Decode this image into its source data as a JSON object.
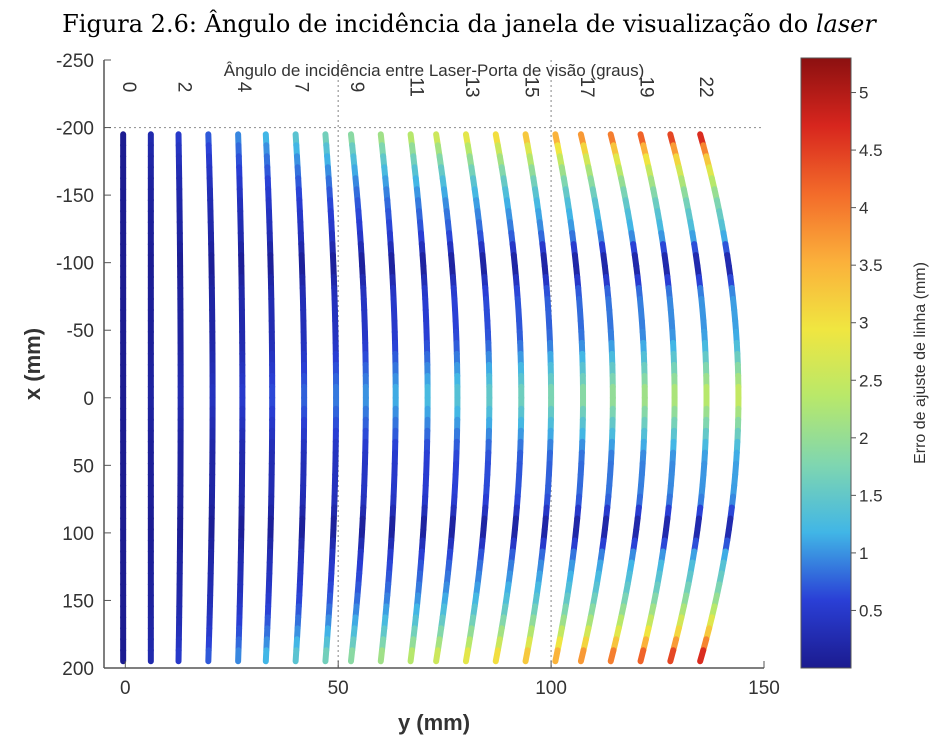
{
  "caption": {
    "prefix": "Figura 2.6: Ângulo de incidência da janela de visualização do ",
    "emphasis": "laser"
  },
  "chart_data": {
    "type": "line",
    "title": "Ângulo de incidência entre Laser-Porta de visão (graus)",
    "xlabel": "y (mm)",
    "ylabel": "x (mm)",
    "xlim": [
      -5,
      150
    ],
    "ylim": [
      -250,
      200
    ],
    "y_axis_inverted": true,
    "xticks": [
      0,
      50,
      100,
      150
    ],
    "yticks": [
      -250,
      -200,
      -150,
      -100,
      -50,
      0,
      50,
      100,
      150,
      200
    ],
    "grid": "dotted reference lines at y = 50, y = 100 and x = -200",
    "curve_labels": [
      "0",
      "2",
      "4",
      "7",
      "9",
      "11",
      "13",
      "15",
      "17",
      "19",
      "22"
    ],
    "series": [
      {
        "name": "0",
        "y_edge": -0.5,
        "y_center": -0.5
      },
      {
        "y_edge": 6.0,
        "y_center": 6.0
      },
      {
        "name": "2",
        "y_edge": 12.5,
        "y_center": 13.0
      },
      {
        "y_edge": 19.5,
        "y_center": 20.5
      },
      {
        "name": "4",
        "y_edge": 26.5,
        "y_center": 27.5
      },
      {
        "y_edge": 33.0,
        "y_center": 34.5
      },
      {
        "name": "7",
        "y_edge": 40.0,
        "y_center": 42.0
      },
      {
        "y_edge": 47.0,
        "y_center": 49.5
      },
      {
        "name": "9",
        "y_edge": 53.0,
        "y_center": 56.5
      },
      {
        "y_edge": 60.0,
        "y_center": 63.5
      },
      {
        "name": "11",
        "y_edge": 67.0,
        "y_center": 71.0
      },
      {
        "y_edge": 73.0,
        "y_center": 78.0
      },
      {
        "name": "13",
        "y_edge": 80.0,
        "y_center": 85.5
      },
      {
        "y_edge": 87.0,
        "y_center": 93.0
      },
      {
        "name": "15",
        "y_edge": 94.0,
        "y_center": 100.0
      },
      {
        "y_edge": 101.0,
        "y_center": 107.5
      },
      {
        "name": "17",
        "y_edge": 107.0,
        "y_center": 114.5
      },
      {
        "y_edge": 114.0,
        "y_center": 122.0
      },
      {
        "name": "19",
        "y_edge": 121.0,
        "y_center": 129.0
      },
      {
        "y_edge": 128.0,
        "y_center": 136.5
      },
      {
        "name": "22",
        "y_edge": 135.0,
        "y_center": 144.0
      }
    ],
    "x_range_of_lines": [
      -195,
      195
    ],
    "colorbar": {
      "label": "Erro de ajuste de linha (mm)",
      "min": 0,
      "max": 5.3,
      "ticks": [
        0.5,
        1,
        1.5,
        2,
        2.5,
        3,
        3.5,
        4,
        4.5,
        5
      ],
      "colormap": "jet",
      "colors": [
        "#1b1b8f",
        "#2a3fd6",
        "#41b6e6",
        "#7fd6b0",
        "#b8e86a",
        "#f0e640",
        "#fbb03b",
        "#f36b2a",
        "#d7261e",
        "#8c1010"
      ]
    }
  }
}
